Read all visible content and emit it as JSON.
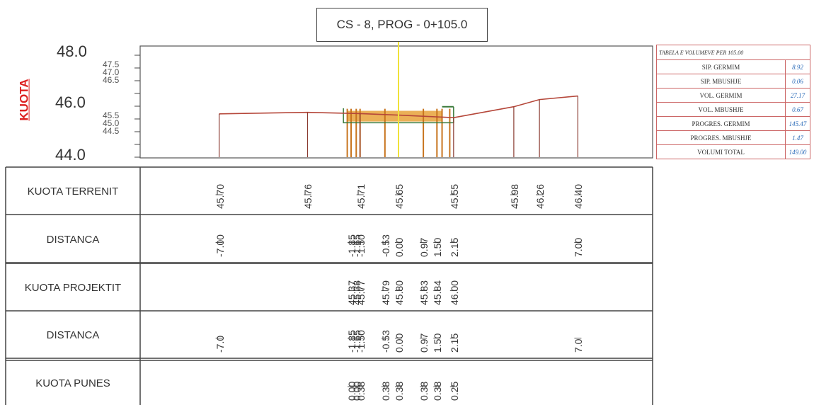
{
  "section_title": "CS - 8, PROG - 0+105.0",
  "axis_label": "KUOTA",
  "elevation_ticks": {
    "major": [
      "48.0",
      "46.0",
      "44.0"
    ],
    "minor_upper": [
      "47.5",
      "47.0",
      "46.5"
    ],
    "minor_lower": [
      "45.5",
      "45.0",
      "44.5"
    ]
  },
  "profile": {
    "colors": {
      "ground_line": "#b5473a",
      "fill": "#e8a23a",
      "axis_marker": "#f0e23a",
      "design_line": "#3a7a3a"
    },
    "ground_points": [
      {
        "d": -7.0,
        "z": 45.7
      },
      {
        "d": -3.55,
        "z": 45.76
      },
      {
        "d": -1.5,
        "z": 45.71
      },
      {
        "d": 0.0,
        "z": 45.65
      },
      {
        "d": 2.15,
        "z": 45.55
      },
      {
        "d": 4.5,
        "z": 45.98
      },
      {
        "d": 5.5,
        "z": 46.26
      },
      {
        "d": 7.0,
        "z": 46.4
      }
    ]
  },
  "rows": [
    {
      "label": "KUOTA TERRENIT",
      "values": [
        {
          "d": -7.0,
          "text": "45.70"
        },
        {
          "d": -3.55,
          "text": "45.76"
        },
        {
          "d": -1.5,
          "text": "45.71"
        },
        {
          "d": 0.0,
          "text": "45.65"
        },
        {
          "d": 2.15,
          "text": "45.55"
        },
        {
          "d": 4.5,
          "text": "45.98"
        },
        {
          "d": 5.5,
          "text": "46.26"
        },
        {
          "d": 7.0,
          "text": "46.40"
        }
      ]
    },
    {
      "label": "DISTANCA",
      "values": [
        {
          "d": -7.0,
          "text": "-7.00"
        },
        {
          "d": -1.85,
          "text": "-1.85"
        },
        {
          "d": -1.65,
          "text": "-1.65"
        },
        {
          "d": -1.5,
          "text": "-1.50"
        },
        {
          "d": -0.53,
          "text": "-0.53"
        },
        {
          "d": 0.0,
          "text": "0.00"
        },
        {
          "d": 0.97,
          "text": "0.97"
        },
        {
          "d": 1.5,
          "text": "1.50"
        },
        {
          "d": 2.15,
          "text": "2.15"
        },
        {
          "d": 7.0,
          "text": "7.00"
        }
      ]
    },
    {
      "label": "KUOTA PROJEKTIT",
      "values": [
        {
          "d": -1.85,
          "text": "45.37"
        },
        {
          "d": -1.65,
          "text": "45.38"
        },
        {
          "d": -1.5,
          "text": "45.77"
        },
        {
          "d": -0.53,
          "text": "45.79"
        },
        {
          "d": 0.0,
          "text": "45.80"
        },
        {
          "d": 0.97,
          "text": "45.83"
        },
        {
          "d": 1.5,
          "text": "45.84"
        },
        {
          "d": 2.15,
          "text": "46.00"
        }
      ]
    },
    {
      "label": "DISTANCA",
      "values": [
        {
          "d": -7.0,
          "text": "-7.0"
        },
        {
          "d": -1.85,
          "text": "-1.85"
        },
        {
          "d": -1.65,
          "text": "-1.65"
        },
        {
          "d": -1.5,
          "text": "-1.50"
        },
        {
          "d": -0.53,
          "text": "-0.53"
        },
        {
          "d": 0.0,
          "text": "0.00"
        },
        {
          "d": 0.97,
          "text": "0.97"
        },
        {
          "d": 1.5,
          "text": "1.50"
        },
        {
          "d": 2.15,
          "text": "2.15"
        },
        {
          "d": 7.0,
          "text": "7.0"
        }
      ]
    },
    {
      "label": "KUOTA PUNES",
      "values": [
        {
          "d": -1.85,
          "text": "0.00"
        },
        {
          "d": -1.65,
          "text": "0.00"
        },
        {
          "d": -1.5,
          "text": "0.38"
        },
        {
          "d": -0.53,
          "text": "0.38"
        },
        {
          "d": 0.0,
          "text": "0.38"
        },
        {
          "d": 0.97,
          "text": "0.38"
        },
        {
          "d": 1.5,
          "text": "0.38"
        },
        {
          "d": 2.15,
          "text": "0.25"
        }
      ]
    }
  ],
  "summary_table": {
    "header": "TABELA E VOLUMEVE PER 105.00",
    "rows": [
      {
        "name": "SIP. GERMIM",
        "value": "8.92"
      },
      {
        "name": "SIP. MBUSHJE",
        "value": "0.06"
      },
      {
        "name": "VOL. GERMIM",
        "value": "27.17"
      },
      {
        "name": "VOL. MBUSHJE",
        "value": "0.67"
      },
      {
        "name": "PROGRES. GERMIM",
        "value": "145.47"
      },
      {
        "name": "PROGRES. MBUSHJE",
        "value": "1.47"
      },
      {
        "name": "VOLUMI TOTAL",
        "value": "149.00"
      }
    ]
  }
}
